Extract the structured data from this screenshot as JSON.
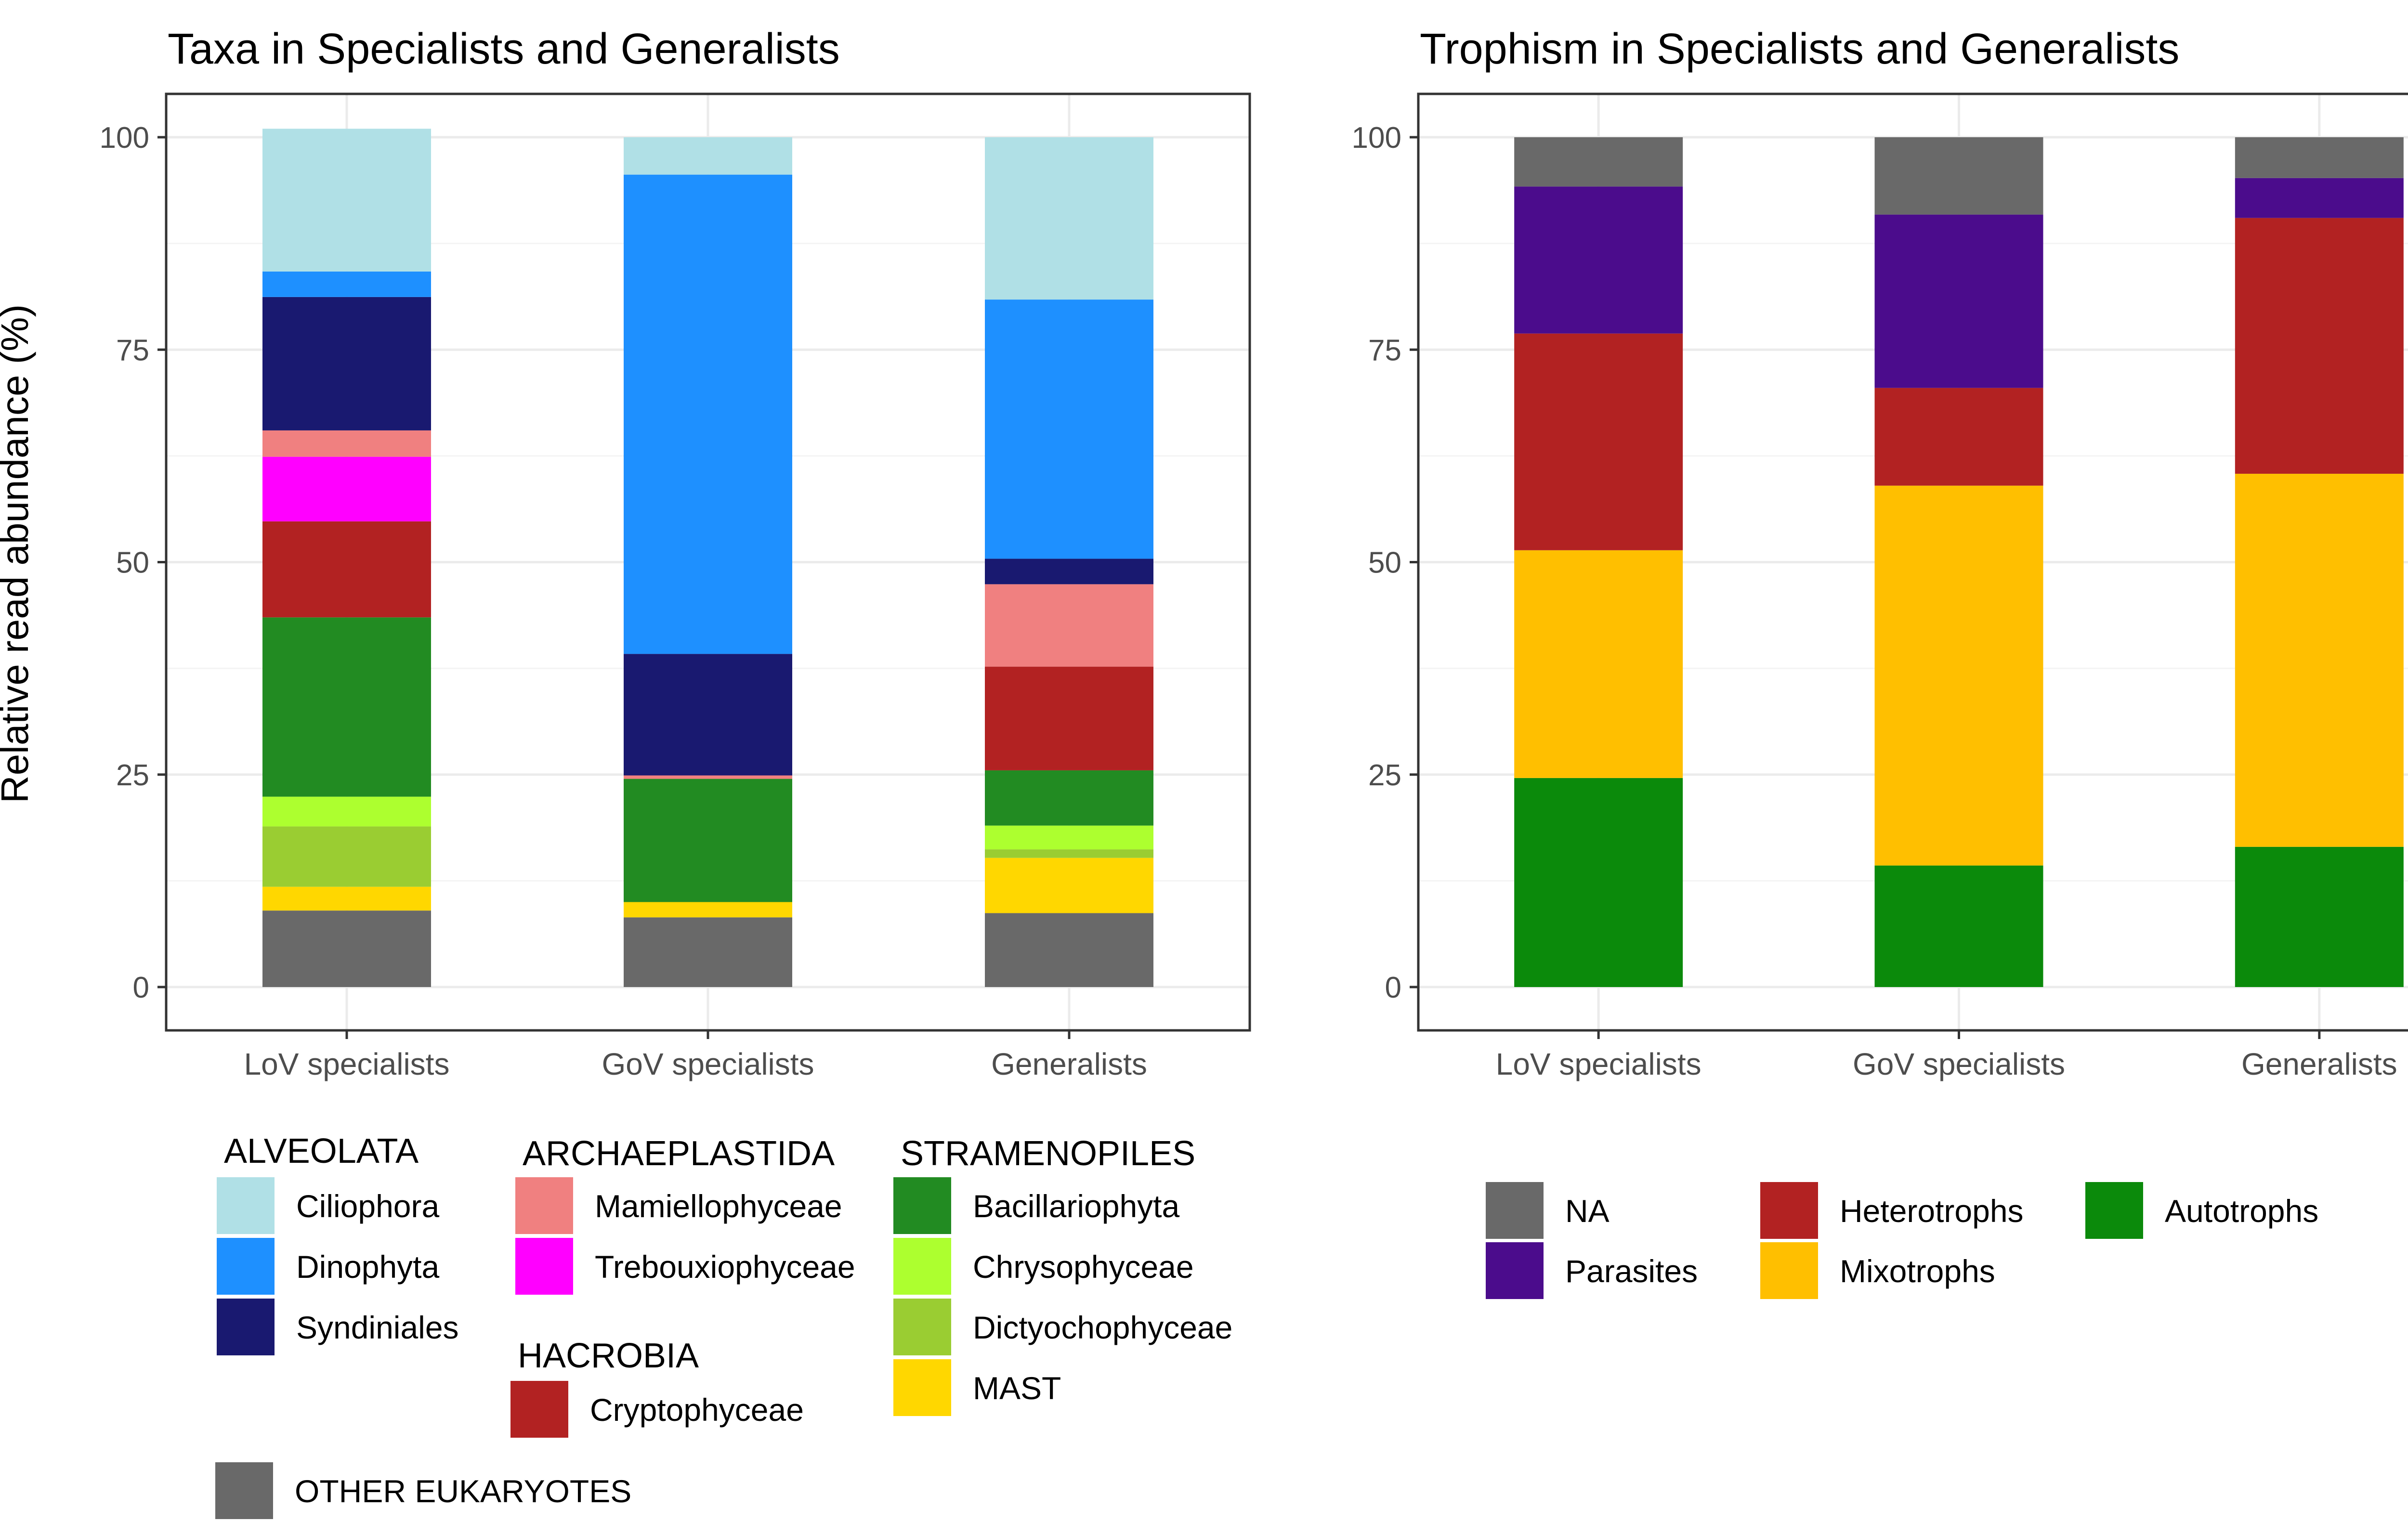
{
  "y_axis_label": "Relative read abundance (%)",
  "chart_data": [
    {
      "type": "bar",
      "stacked": true,
      "title": "Taxa in Specialists and Generalists",
      "xlabel": "",
      "ylabel": "Relative read abundance (%)",
      "ylim": [
        0,
        100
      ],
      "yticks": [
        "0",
        "25",
        "50",
        "75",
        "100"
      ],
      "ytick_values": [
        0,
        25,
        50,
        75,
        100
      ],
      "grid": true,
      "categories": [
        "LoV specialists",
        "GoV specialists",
        "Generalists"
      ],
      "series": [
        {
          "name": "OTHER EUKARYOTES",
          "color": "#696969",
          "values": [
            9.0,
            8.2,
            8.7
          ]
        },
        {
          "name": "MAST",
          "color": "#FFD700",
          "values": [
            2.8,
            1.8,
            6.5
          ]
        },
        {
          "name": "Dictyochophyceae",
          "color": "#9ACD32",
          "values": [
            7.1,
            0,
            1.0
          ]
        },
        {
          "name": "Chrysophyceae",
          "color": "#ADFF2F",
          "values": [
            3.5,
            0,
            2.8
          ]
        },
        {
          "name": "Bacillariophyta",
          "color": "#228B22",
          "values": [
            21.1,
            14.5,
            6.5
          ]
        },
        {
          "name": "Cryptophyceae",
          "color": "#B22222",
          "values": [
            11.3,
            0,
            12.2
          ]
        },
        {
          "name": "Trebouxiophyceae",
          "color": "#FF00FF",
          "values": [
            7.6,
            0,
            0
          ]
        },
        {
          "name": "Mamiellophyceae",
          "color": "#F08080",
          "values": [
            3.1,
            0.4,
            9.7
          ]
        },
        {
          "name": "Syndiniales",
          "color": "#191970",
          "values": [
            15.7,
            14.3,
            3.0
          ]
        },
        {
          "name": "Dinophyta",
          "color": "#1E90FF",
          "values": [
            3.0,
            56.4,
            30.5
          ]
        },
        {
          "name": "Ciliophora",
          "color": "#B0E0E6",
          "values": [
            16.8,
            4.4,
            19.1
          ]
        }
      ],
      "legend": {
        "placement": "bottom",
        "groups": [
          {
            "title": "ALVEOLATA",
            "items": [
              "Ciliophora",
              "Dinophyta",
              "Syndiniales"
            ]
          },
          {
            "title": "ARCHAEPLASTIDA",
            "items": [
              "Mamiellophyceae",
              "Trebouxiophyceae"
            ]
          },
          {
            "title": "HACROBIA",
            "items": [
              "Cryptophyceae"
            ]
          },
          {
            "title": "STRAMENOPILES",
            "items": [
              "Bacillariophyta",
              "Chrysophyceae",
              "Dictyochophyceae",
              "MAST"
            ]
          },
          {
            "title": "",
            "items": [
              "OTHER EUKARYOTES"
            ]
          }
        ]
      }
    },
    {
      "type": "bar",
      "stacked": true,
      "title": "Trophism in Specialists and Generalists",
      "xlabel": "",
      "ylabel": "",
      "ylim": [
        0,
        100
      ],
      "yticks": [
        "0",
        "25",
        "50",
        "75",
        "100"
      ],
      "ytick_values": [
        0,
        25,
        50,
        75,
        100
      ],
      "grid": true,
      "categories": [
        "LoV specialists",
        "GoV specialists",
        "Generalists"
      ],
      "series": [
        {
          "name": "Autotrophs",
          "color": "#0B8A0B",
          "values": [
            24.6,
            14.3,
            16.5
          ]
        },
        {
          "name": "Mixotrophs",
          "color": "#FFBF00",
          "values": [
            26.8,
            44.7,
            43.9
          ]
        },
        {
          "name": "Heterotrophs",
          "color": "#B22222",
          "values": [
            25.5,
            11.5,
            30.1
          ]
        },
        {
          "name": "Parasites",
          "color": "#4B0C8C",
          "values": [
            17.3,
            20.4,
            4.7
          ]
        },
        {
          "name": "NA",
          "color": "#696969",
          "values": [
            5.8,
            9.1,
            4.8
          ]
        }
      ],
      "legend": {
        "placement": "bottom",
        "groups": [
          {
            "title": "",
            "items": [
              "NA",
              "Parasites",
              "Heterotrophs",
              "Mixotrophs",
              "Autotrophs"
            ]
          }
        ]
      }
    }
  ]
}
